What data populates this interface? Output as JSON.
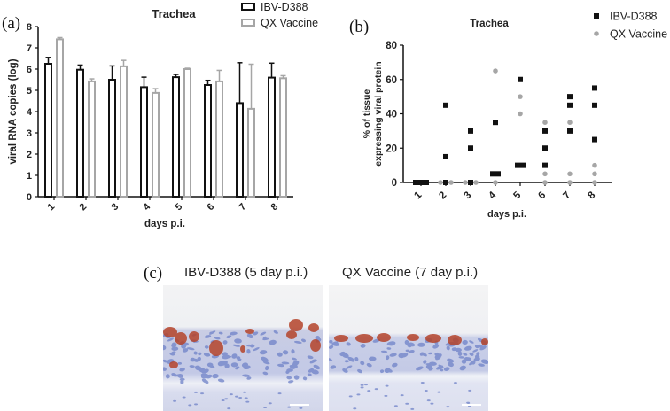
{
  "panels": {
    "a": "(a)",
    "b": "(b)",
    "c": "(c)"
  },
  "chart_data": [
    {
      "id": "a",
      "type": "bar",
      "title": "Trachea",
      "xlabel": "days p.i.",
      "ylabel": "viral RNA copies (log)",
      "ylim": [
        0,
        8
      ],
      "yticks": [
        0,
        1,
        2,
        3,
        4,
        5,
        6,
        7,
        8
      ],
      "categories": [
        "1",
        "2",
        "3",
        "4",
        "5",
        "6",
        "7",
        "8"
      ],
      "legend_position": "top-right",
      "grid": false,
      "series": [
        {
          "name": "IBV-D388",
          "color": "#111111",
          "style": "outline",
          "values": [
            6.25,
            5.97,
            5.5,
            5.15,
            5.62,
            5.25,
            4.4,
            5.6
          ],
          "error": [
            0.3,
            0.22,
            0.65,
            0.47,
            0.13,
            0.22,
            1.9,
            0.68
          ]
        },
        {
          "name": "QX Vaccine",
          "color": "#a6a6a6",
          "style": "outline",
          "values": [
            7.4,
            5.42,
            6.13,
            4.88,
            6.0,
            5.42,
            4.13,
            5.57
          ],
          "error": [
            0.08,
            0.12,
            0.28,
            0.2,
            0.04,
            0.52,
            2.1,
            0.12
          ]
        }
      ]
    },
    {
      "id": "b",
      "type": "scatter",
      "title": "Trachea",
      "xlabel": "days p.i.",
      "ylabel": "% of tissue expressing viral protein",
      "ylabel_lines": [
        "% of tissue",
        "expressing viral protein"
      ],
      "ylim": [
        0,
        80
      ],
      "yticks": [
        0,
        20,
        40,
        60,
        80
      ],
      "categories": [
        "1",
        "2",
        "3",
        "4",
        "5",
        "6",
        "7",
        "8"
      ],
      "legend_position": "top-right",
      "grid": false,
      "series": [
        {
          "name": "IBV-D388",
          "marker": "square",
          "color": "#111111",
          "points": [
            {
              "x": 1,
              "y": [
                0,
                0,
                0
              ]
            },
            {
              "x": 2,
              "y": [
                45,
                15,
                0
              ]
            },
            {
              "x": 3,
              "y": [
                30,
                20,
                0
              ]
            },
            {
              "x": 4,
              "y": [
                35,
                5,
                5
              ]
            },
            {
              "x": 5,
              "y": [
                60,
                10,
                10
              ]
            },
            {
              "x": 6,
              "y": [
                30,
                20,
                10
              ]
            },
            {
              "x": 7,
              "y": [
                50,
                45,
                30
              ]
            },
            {
              "x": 8,
              "y": [
                55,
                45,
                25
              ]
            }
          ]
        },
        {
          "name": "QX Vaccine",
          "marker": "circle",
          "color": "#a6a6a6",
          "points": [
            {
              "x": 1,
              "y": [
                0,
                0,
                0
              ]
            },
            {
              "x": 2,
              "y": [
                0,
                0,
                0
              ]
            },
            {
              "x": 3,
              "y": [
                0,
                0,
                0
              ]
            },
            {
              "x": 4,
              "y": [
                65,
                5,
                0
              ]
            },
            {
              "x": 5,
              "y": [
                50,
                40,
                10
              ]
            },
            {
              "x": 6,
              "y": [
                35,
                5,
                0
              ]
            },
            {
              "x": 7,
              "y": [
                35,
                5,
                0
              ]
            },
            {
              "x": 8,
              "y": [
                10,
                5,
                0
              ]
            }
          ]
        }
      ]
    }
  ],
  "micrographs": [
    {
      "caption": "IBV-D388 (5 day p.i.)"
    },
    {
      "caption": "QX Vaccine (7 day p.i.)"
    }
  ]
}
